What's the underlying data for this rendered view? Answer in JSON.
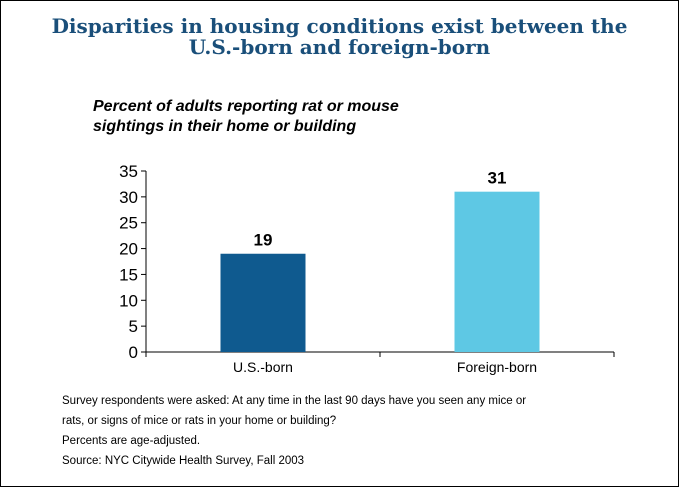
{
  "page": {
    "title_lines": [
      "Disparities in housing conditions exist between the",
      "U.S.-born and foreign-born"
    ],
    "notes": [
      "Survey respondents were asked: At any time in the last 90 days have you seen any mice or",
      "rats, or signs of mice or rats in your home or building?",
      "Percents are age-adjusted.",
      "Source:  NYC Citywide Health Survey, Fall 2003"
    ]
  },
  "chart_data": {
    "type": "bar",
    "subtitle_lines": [
      "Percent of adults reporting rat or mouse",
      "sightings in their home or building"
    ],
    "categories": [
      "U.S.-born",
      "Foreign-born"
    ],
    "values": [
      19,
      31
    ],
    "bar_colors": [
      "#0f5a8f",
      "#5ec8e4"
    ],
    "data_labels": [
      "19",
      "31"
    ],
    "ylim": [
      0,
      35
    ],
    "yticks": [
      0,
      5,
      10,
      15,
      20,
      25,
      30,
      35
    ],
    "grid": false,
    "legend": "none"
  },
  "colors": {
    "title": "#1a4f7a",
    "text": "#000000",
    "axis": "#000000"
  }
}
